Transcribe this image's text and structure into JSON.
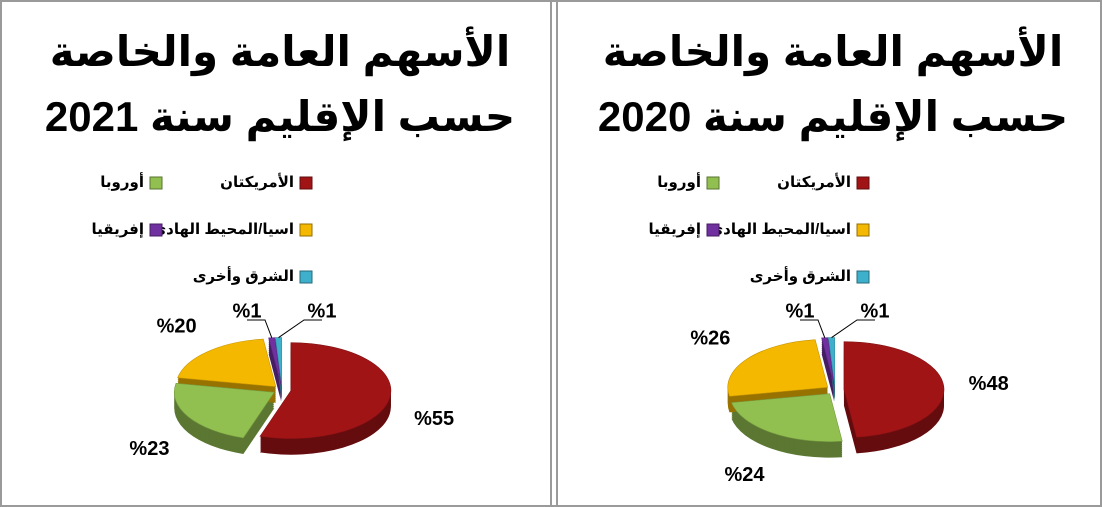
{
  "chart_data": [
    {
      "type": "pie",
      "title": [
        "الأسهم العامة والخاصة",
        "حسب الإقليم سنة 2021"
      ],
      "categories": [
        "الأمريكتان",
        "أوروبا",
        "اسيا/المحيط الهادئ",
        "إفريقيا",
        "الشرق وأخرى"
      ],
      "values": [
        55,
        23,
        20,
        1,
        1
      ],
      "value_labels": [
        "%55",
        "%23",
        "%20",
        "%1",
        "%1"
      ],
      "colors": [
        "#a11416",
        "#92c050",
        "#f5b800",
        "#7030a0",
        "#3fb0cc"
      ]
    },
    {
      "type": "pie",
      "title": [
        "الأسهم العامة والخاصة",
        "حسب الإقليم سنة 2020"
      ],
      "categories": [
        "الأمريكتان",
        "أوروبا",
        "اسيا/المحيط الهادئ",
        "إفريقيا",
        "الشرق وأخرى"
      ],
      "values": [
        48,
        24,
        26,
        1,
        1
      ],
      "value_labels": [
        "%48",
        "%24",
        "%26",
        "%1",
        "%1"
      ],
      "colors": [
        "#a11416",
        "#92c050",
        "#f5b800",
        "#7030a0",
        "#3fb0cc"
      ]
    }
  ]
}
